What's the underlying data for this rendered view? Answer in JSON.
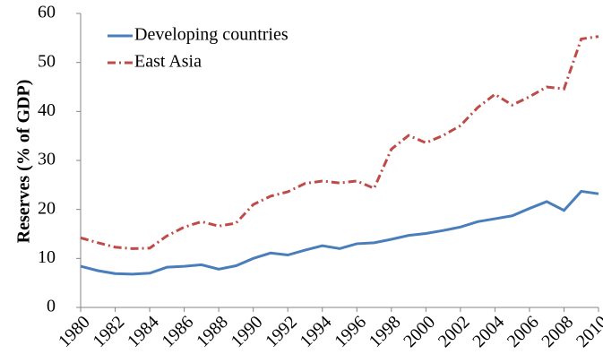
{
  "chart_data": {
    "type": "line",
    "ylabel": "Reserves (% of GDP)",
    "x": [
      1980,
      1981,
      1982,
      1983,
      1984,
      1985,
      1986,
      1987,
      1988,
      1989,
      1990,
      1991,
      1992,
      1993,
      1994,
      1995,
      1996,
      1997,
      1998,
      1999,
      2000,
      2001,
      2002,
      2003,
      2004,
      2005,
      2006,
      2007,
      2008,
      2009,
      2010
    ],
    "series": [
      {
        "name": "Developing countries",
        "color": "#4a7ebb",
        "dash": false,
        "values": [
          8.4,
          7.5,
          6.9,
          6.8,
          7.0,
          8.2,
          8.4,
          8.7,
          7.8,
          8.5,
          10.0,
          11.1,
          10.7,
          11.7,
          12.6,
          12.0,
          13.0,
          13.2,
          13.9,
          14.7,
          15.1,
          15.7,
          16.4,
          17.5,
          18.1,
          18.7,
          20.2,
          21.6,
          19.8,
          23.7,
          23.2
        ]
      },
      {
        "name": "East Asia",
        "color": "#be4b48",
        "dash": true,
        "values": [
          14.2,
          13.2,
          12.3,
          12.0,
          12.1,
          14.6,
          16.4,
          17.5,
          16.6,
          17.2,
          21.0,
          22.7,
          23.6,
          25.3,
          25.8,
          25.4,
          25.8,
          24.3,
          32.3,
          35.1,
          33.6,
          35.1,
          37.1,
          40.8,
          43.5,
          41.3,
          43.0,
          45.0,
          44.6,
          54.8,
          55.3
        ]
      }
    ],
    "xlim": [
      1980,
      2010
    ],
    "xticks": [
      1980,
      1982,
      1984,
      1986,
      1988,
      1990,
      1992,
      1994,
      1996,
      1998,
      2000,
      2002,
      2004,
      2006,
      2008,
      2010
    ],
    "ylim": [
      0,
      60
    ],
    "yticks": [
      0,
      10,
      20,
      30,
      40,
      50,
      60
    ],
    "grid": false,
    "legend": "upper left"
  }
}
